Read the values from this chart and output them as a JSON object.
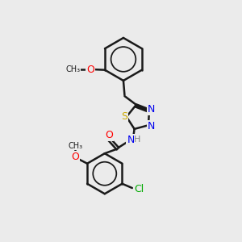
{
  "bg_color": "#ebebeb",
  "bond_color": "#1a1a1a",
  "bond_width": 1.8,
  "atom_colors": {
    "O": "#ff0000",
    "N": "#0000ee",
    "S": "#ccaa00",
    "Cl": "#00aa00",
    "C": "#1a1a1a",
    "H": "#808080"
  },
  "font_size": 8,
  "fig_size": [
    3.0,
    3.0
  ],
  "dpi": 100,
  "xlim": [
    0,
    10
  ],
  "ylim": [
    0,
    10
  ]
}
